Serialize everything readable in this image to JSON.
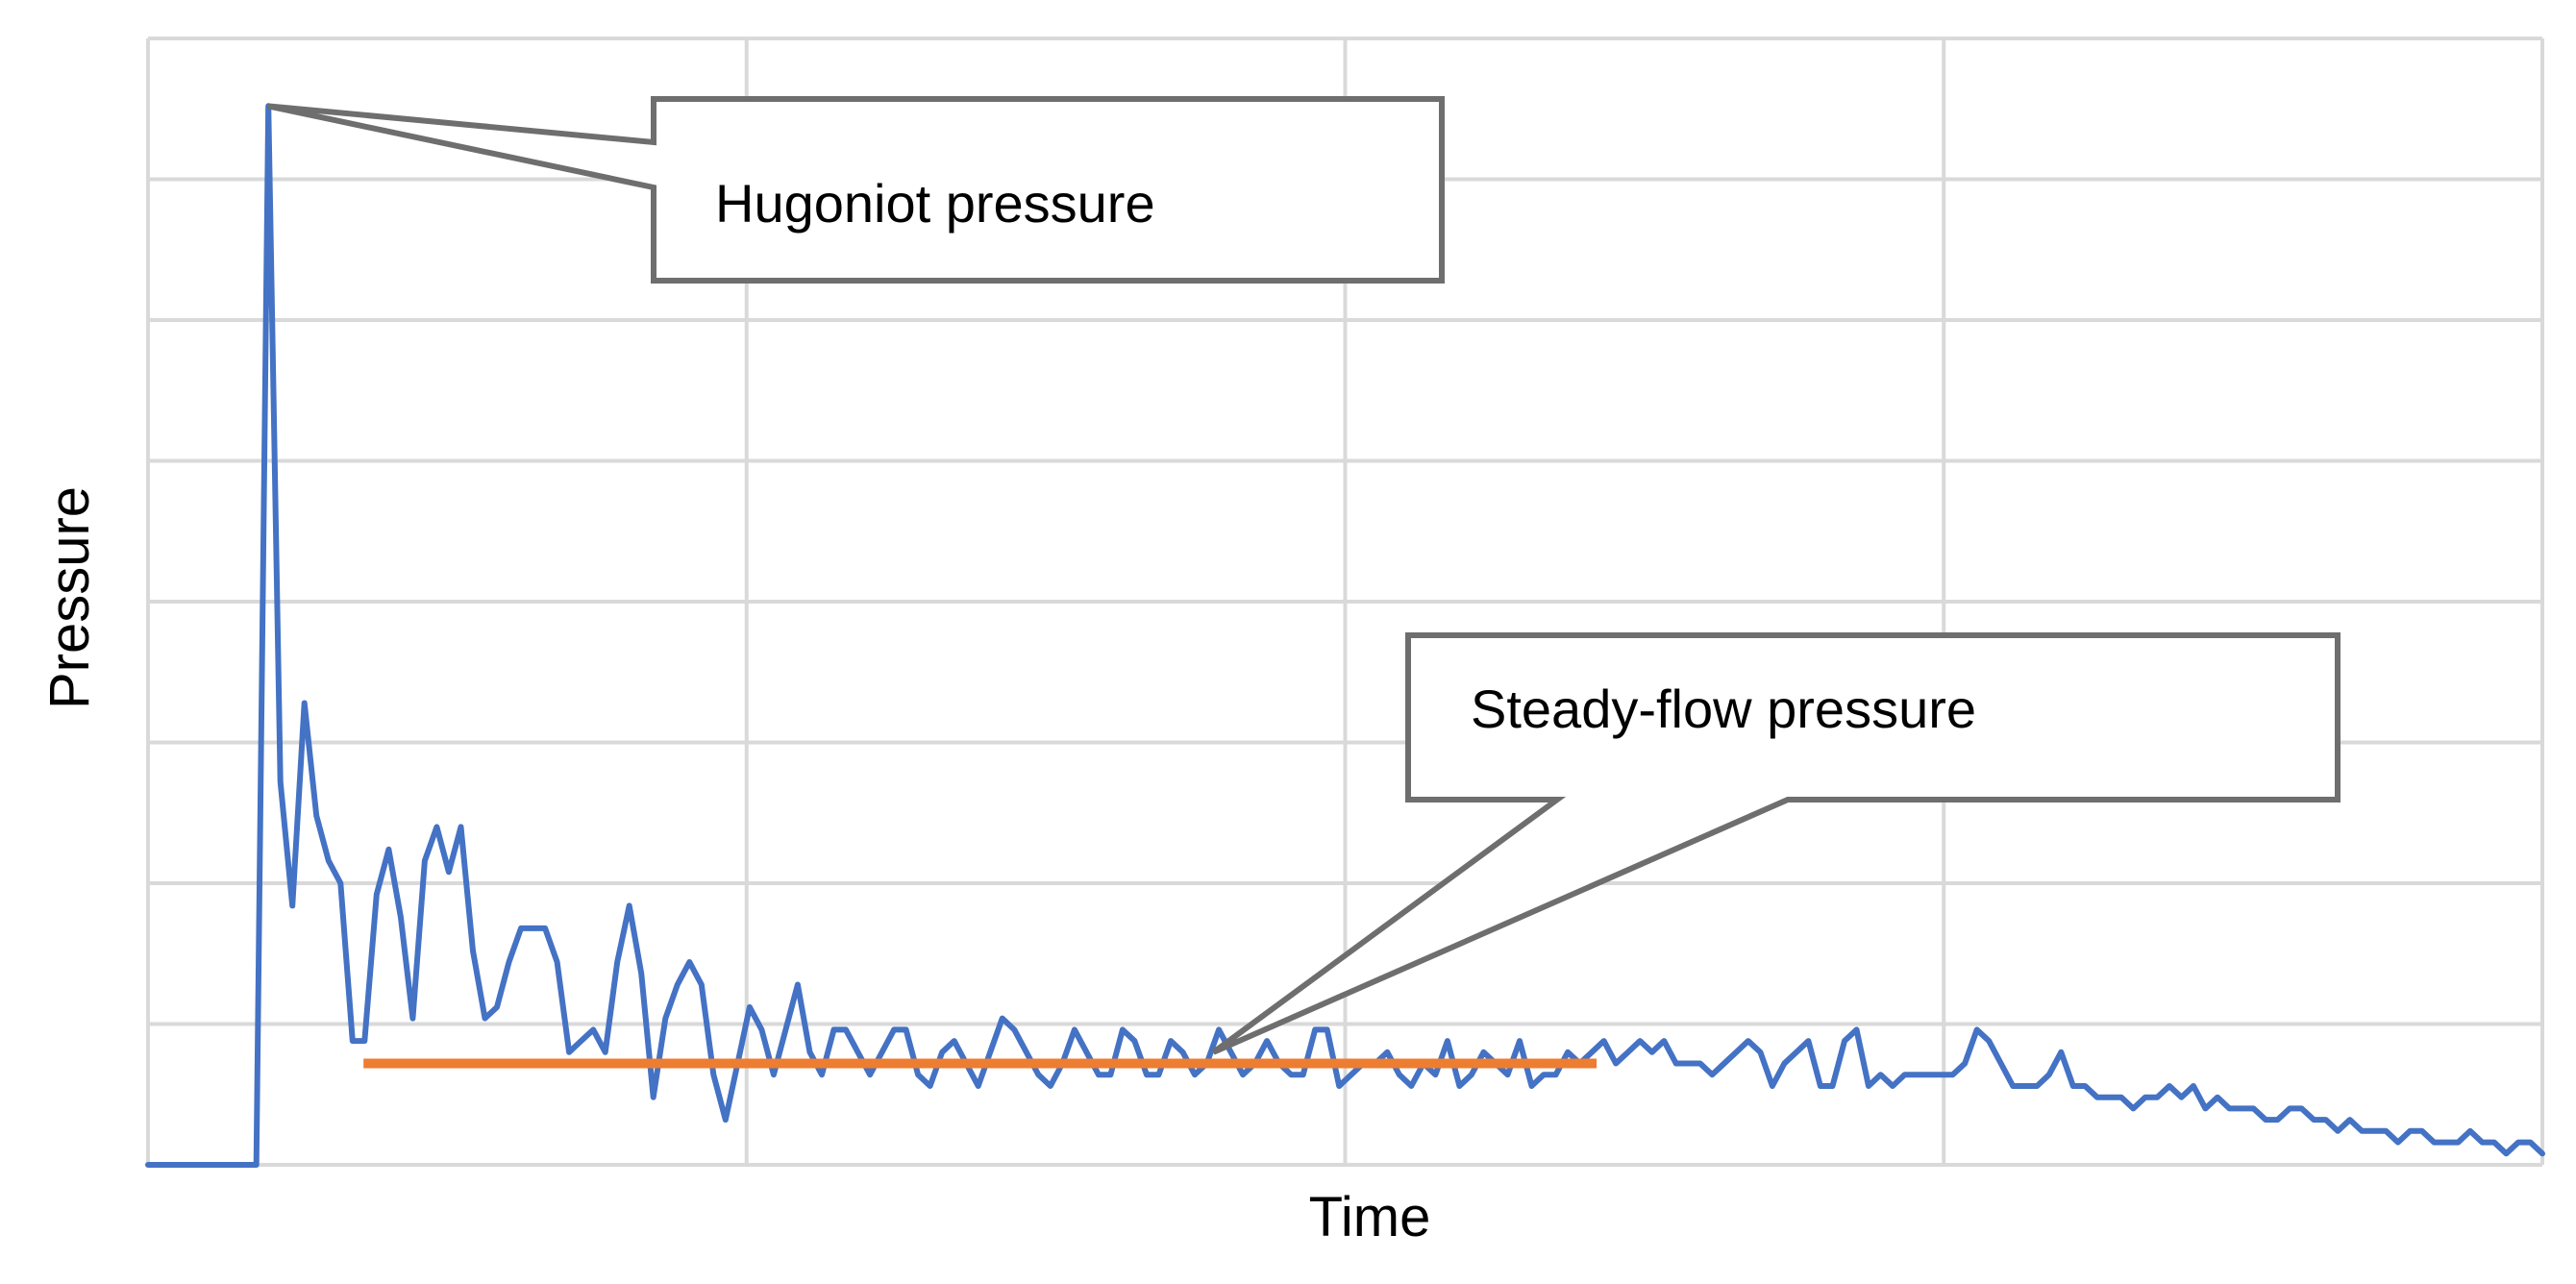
{
  "chart_data": {
    "type": "line",
    "xlabel": "Time",
    "ylabel": "Pressure",
    "xlim": [
      0,
      200
    ],
    "ylim": [
      0,
      100
    ],
    "grid": true,
    "x_tick_labels_shown": false,
    "y_tick_labels_shown": false,
    "colors": {
      "pressure_line": "#4472C4",
      "steady_line": "#ED7D31",
      "grid": "#d9d9d9",
      "callout_border": "#6e6e6e"
    },
    "series": [
      {
        "values": [
          0,
          0,
          0,
          0,
          0,
          0,
          0,
          0,
          0,
          0,
          94,
          34,
          23,
          41,
          31,
          27,
          25,
          11,
          11,
          24,
          28,
          22,
          13,
          27,
          30,
          26,
          30,
          19,
          13,
          14,
          18,
          21,
          21,
          21,
          18,
          10,
          11,
          12,
          10,
          18,
          23,
          17,
          6,
          13,
          16,
          18,
          16,
          8,
          4,
          9,
          14,
          12,
          8,
          12,
          16,
          10,
          8,
          12,
          12,
          10,
          8,
          10,
          12,
          12,
          8,
          7,
          10,
          11,
          9,
          7,
          10,
          13,
          12,
          10,
          8,
          7,
          9,
          12,
          10,
          8,
          8,
          12,
          11,
          8,
          8,
          11,
          10,
          8,
          9,
          12,
          10,
          8,
          9,
          11,
          9,
          8,
          8,
          12,
          12,
          7,
          8,
          9,
          9,
          10,
          8,
          7,
          9,
          8,
          11,
          7,
          8,
          10,
          9,
          8,
          11,
          7,
          8,
          8,
          10,
          9,
          10,
          11,
          9,
          10,
          11,
          10,
          11,
          9,
          9,
          9,
          8,
          9,
          10,
          11,
          10,
          7,
          9,
          10,
          11,
          7,
          7,
          11,
          12,
          7,
          8,
          7,
          8,
          8,
          8,
          8,
          8,
          9,
          12,
          11,
          9,
          7,
          7,
          7,
          8,
          10,
          7,
          7,
          6,
          6,
          6,
          5,
          6,
          6,
          7,
          6,
          7,
          5,
          6,
          5,
          5,
          5,
          4,
          4,
          5,
          5,
          4,
          4,
          3,
          4,
          3,
          3,
          3,
          2,
          3,
          3,
          2,
          2,
          2,
          3,
          2,
          2,
          1,
          2,
          2,
          1
        ]
      },
      {
        "type": "line",
        "x": [
          18,
          121
        ],
        "y": [
          9,
          9
        ]
      }
    ],
    "annotations": [
      {
        "text": "Hugoniot pressure",
        "target": {
          "x": 10,
          "y": 94
        }
      },
      {
        "text": "Steady-flow pressure",
        "target": {
          "x": 89,
          "y": 10
        }
      }
    ]
  }
}
